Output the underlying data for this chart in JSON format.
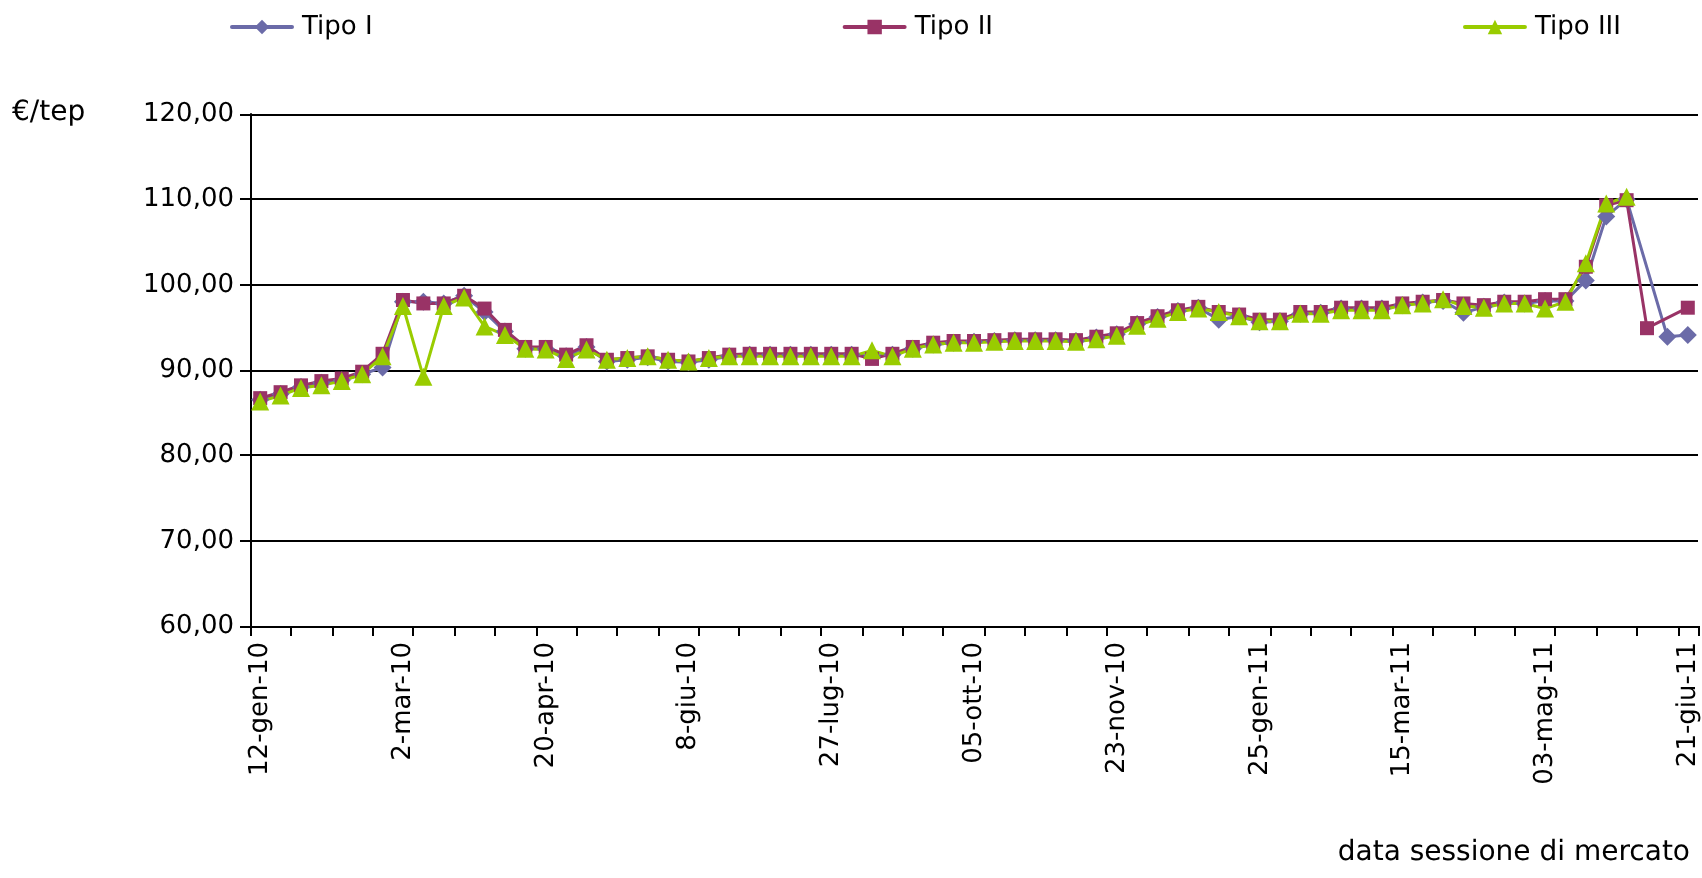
{
  "chart_data": {
    "type": "line",
    "ylabel": "€/tep",
    "xlabel": "data sessione di mercato",
    "categories": [
      "12-gen-10",
      null,
      null,
      null,
      null,
      null,
      null,
      "2-mar-10",
      null,
      null,
      null,
      null,
      null,
      null,
      "20-apr-10",
      null,
      null,
      null,
      null,
      null,
      null,
      "8-giu-10",
      null,
      null,
      null,
      null,
      null,
      null,
      "27-lug-10",
      null,
      null,
      null,
      null,
      null,
      null,
      "05-ott-10",
      null,
      null,
      null,
      null,
      null,
      null,
      "23-nov-10",
      null,
      null,
      null,
      null,
      null,
      null,
      "25-gen-11",
      null,
      null,
      null,
      null,
      null,
      null,
      "15-mar-11",
      null,
      null,
      null,
      null,
      null,
      null,
      "03-mag-11",
      null,
      null,
      null,
      null,
      null,
      null,
      "21-giu-11"
    ],
    "series": [
      {
        "name": "Tipo I",
        "color": "#6b6ba8",
        "marker": "diamond",
        "values": [
          86.5,
          87.2,
          88.0,
          88.5,
          88.8,
          89.5,
          90.3,
          98.0,
          98.0,
          97.8,
          98.7,
          96.8,
          94.5,
          92.5,
          92.5,
          91.6,
          92.7,
          91.0,
          91.2,
          91.5,
          91.0,
          90.9,
          91.2,
          91.6,
          91.8,
          91.8,
          91.8,
          91.8,
          91.8,
          91.8,
          91.6,
          91.8,
          92.5,
          93.0,
          93.2,
          93.3,
          93.4,
          93.5,
          93.5,
          93.5,
          93.4,
          93.8,
          94.2,
          95.4,
          96.2,
          96.9,
          97.3,
          95.9,
          96.3,
          95.6,
          95.7,
          96.6,
          96.7,
          97.2,
          97.2,
          97.2,
          97.6,
          97.9,
          98.1,
          96.7,
          97.4,
          97.9,
          97.8,
          98.1,
          98.1,
          100.5,
          108.0,
          110.0,
          null,
          93.9,
          94.1
        ]
      },
      {
        "name": "Tipo II",
        "color": "#993366",
        "marker": "square",
        "values": [
          86.7,
          87.4,
          88.2,
          88.7,
          89.0,
          89.8,
          91.9,
          98.2,
          97.8,
          97.8,
          98.7,
          97.2,
          94.7,
          92.7,
          92.7,
          91.8,
          92.9,
          91.2,
          91.4,
          91.6,
          91.2,
          91.0,
          91.4,
          91.8,
          91.9,
          91.9,
          91.9,
          91.9,
          91.9,
          91.9,
          91.3,
          91.9,
          92.7,
          93.2,
          93.4,
          93.4,
          93.5,
          93.6,
          93.6,
          93.6,
          93.5,
          93.9,
          94.3,
          95.5,
          96.3,
          97.0,
          97.4,
          96.8,
          96.5,
          95.9,
          95.9,
          96.8,
          96.8,
          97.3,
          97.3,
          97.3,
          97.8,
          98.0,
          98.2,
          97.8,
          97.6,
          98.0,
          98.0,
          98.3,
          98.3,
          102.1,
          109.3,
          109.9,
          94.9,
          null,
          97.3
        ]
      },
      {
        "name": "Tipo III",
        "color": "#99cc00",
        "marker": "triangle",
        "values": [
          86.3,
          87.0,
          87.9,
          88.2,
          88.7,
          89.5,
          91.6,
          97.5,
          89.2,
          97.5,
          98.5,
          95.1,
          94.1,
          92.5,
          92.4,
          91.3,
          92.4,
          91.2,
          91.4,
          91.6,
          91.2,
          91.0,
          91.4,
          91.6,
          91.6,
          91.6,
          91.6,
          91.6,
          91.6,
          91.6,
          92.3,
          91.6,
          92.5,
          93.0,
          93.2,
          93.2,
          93.3,
          93.4,
          93.4,
          93.4,
          93.3,
          93.6,
          94.0,
          95.2,
          96.0,
          96.8,
          97.2,
          96.8,
          96.3,
          95.7,
          95.7,
          96.6,
          96.6,
          97.0,
          97.0,
          97.0,
          97.6,
          97.8,
          98.3,
          97.5,
          97.3,
          97.8,
          97.8,
          97.2,
          98.0,
          102.5,
          109.5,
          110.3,
          null,
          null,
          null
        ]
      }
    ],
    "ylim": [
      60,
      120
    ],
    "yticks": [
      {
        "value": 60,
        "label": "60,00"
      },
      {
        "value": 70,
        "label": "70,00"
      },
      {
        "value": 80,
        "label": "80,00"
      },
      {
        "value": 90,
        "label": "90,00"
      },
      {
        "value": 100,
        "label": "100,00"
      },
      {
        "value": 110,
        "label": "110,00"
      },
      {
        "value": 120,
        "label": "120,00"
      }
    ],
    "grid": "y",
    "legend": "top",
    "line_style": "solid"
  }
}
